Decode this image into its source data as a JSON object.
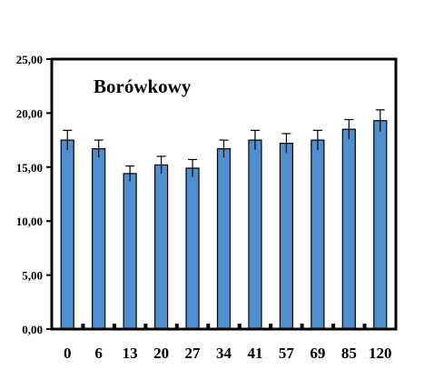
{
  "chart_data": {
    "type": "bar",
    "title": "Borówkowy",
    "xlabel": "",
    "ylabel": "",
    "categories": [
      "0",
      "6",
      "13",
      "20",
      "27",
      "34",
      "41",
      "57",
      "69",
      "85",
      "120"
    ],
    "values": [
      17.5,
      16.7,
      14.4,
      15.2,
      14.9,
      16.7,
      17.5,
      17.2,
      17.5,
      18.5,
      19.3
    ],
    "error": [
      0.9,
      0.8,
      0.7,
      0.8,
      0.8,
      0.8,
      0.9,
      0.9,
      0.9,
      0.9,
      1.0
    ],
    "ylim": [
      0,
      25
    ],
    "y_ticks": [
      0,
      5,
      10,
      15,
      20,
      25
    ],
    "y_tick_labels": [
      "0,00",
      "5,00",
      "10,00",
      "15,00",
      "20,00",
      "25,00"
    ],
    "bar_color": "#4f8fd0",
    "bar_edge_color": "#000000",
    "grid": false,
    "legend": "none"
  }
}
